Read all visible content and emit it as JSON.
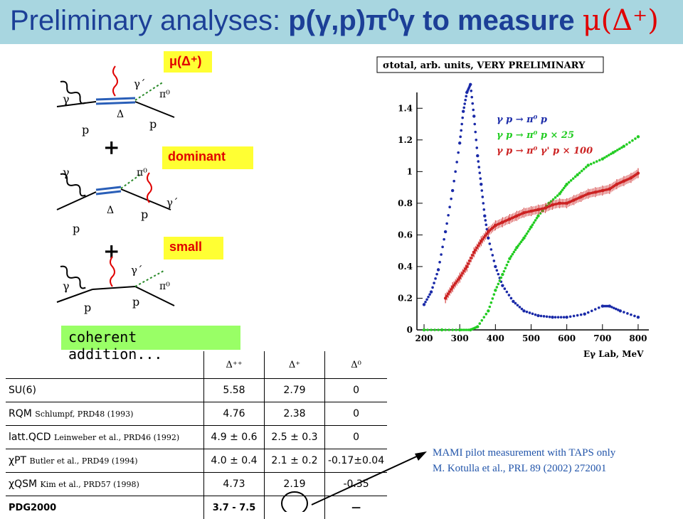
{
  "title": {
    "prefix": "Preliminary analyses: ",
    "reaction": "p(γ,p)π⁰γ",
    "mid": " to measure ",
    "quantity": "μ(Δ⁺)"
  },
  "diagrams": {
    "labels": {
      "gamma": "γ",
      "gamma_prime": "γ´",
      "pi0": "π⁰",
      "delta": "Δ",
      "p": "p",
      "plus": "+"
    },
    "box_mu": "μ(Δ⁺)",
    "box_dominant": "dominant",
    "box_small": "small",
    "coherent": "coherent addition..."
  },
  "chart_data": {
    "type": "scatter",
    "title": "σtotal, arb. units, VERY PRELIMINARY",
    "xlabel": "Eγ Lab, MeV",
    "ylabel": "",
    "xlim": [
      180,
      830
    ],
    "ylim": [
      0,
      1.5
    ],
    "xticks": [
      "200",
      "300",
      "400",
      "500",
      "600",
      "700",
      "800"
    ],
    "yticks": [
      "0",
      "0.2",
      "0.4",
      "0.6",
      "0.8",
      "1",
      "1.2",
      "1.4"
    ],
    "series": [
      {
        "name": "γ p → π⁰ p",
        "color": "#1a2aa8",
        "x": [
          200,
          220,
          240,
          260,
          280,
          300,
          310,
          320,
          330,
          340,
          350,
          360,
          370,
          380,
          400,
          420,
          450,
          480,
          520,
          560,
          600,
          650,
          700,
          720,
          750,
          800
        ],
        "y": [
          0.16,
          0.24,
          0.38,
          0.62,
          0.88,
          1.18,
          1.38,
          1.5,
          1.55,
          1.35,
          1.1,
          0.92,
          0.72,
          0.58,
          0.4,
          0.28,
          0.18,
          0.12,
          0.09,
          0.08,
          0.08,
          0.1,
          0.15,
          0.15,
          0.12,
          0.08
        ]
      },
      {
        "name": "γ p → π⁰ p × 25",
        "color": "#22cc22",
        "x": [
          200,
          250,
          300,
          330,
          350,
          380,
          400,
          420,
          440,
          460,
          480,
          500,
          520,
          550,
          580,
          600,
          630,
          660,
          700,
          730,
          760,
          800
        ],
        "y": [
          0,
          0,
          0,
          0,
          0.02,
          0.12,
          0.25,
          0.35,
          0.45,
          0.52,
          0.58,
          0.65,
          0.72,
          0.8,
          0.86,
          0.92,
          0.98,
          1.04,
          1.08,
          1.12,
          1.16,
          1.22
        ]
      },
      {
        "name": "γ p → π⁰ γ' p × 100",
        "color": "#cc2222",
        "x": [
          260,
          280,
          300,
          320,
          340,
          360,
          380,
          400,
          420,
          440,
          460,
          480,
          500,
          520,
          540,
          560,
          580,
          600,
          620,
          640,
          660,
          680,
          700,
          720,
          740,
          760,
          780,
          800
        ],
        "y": [
          0.2,
          0.27,
          0.33,
          0.4,
          0.49,
          0.56,
          0.62,
          0.66,
          0.68,
          0.7,
          0.72,
          0.74,
          0.75,
          0.76,
          0.77,
          0.79,
          0.8,
          0.8,
          0.82,
          0.84,
          0.86,
          0.87,
          0.88,
          0.89,
          0.92,
          0.94,
          0.96,
          0.99
        ]
      }
    ]
  },
  "table": {
    "headers": [
      "Δ⁺⁺",
      "Δ⁺",
      "Δ⁰"
    ],
    "rows": [
      {
        "name": "SU(6)",
        "ref": "",
        "v": [
          "5.58",
          "2.79",
          "0"
        ]
      },
      {
        "name": "RQM",
        "ref": "Schlumpf, PRD48 (1993)",
        "v": [
          "4.76",
          "2.38",
          "0"
        ]
      },
      {
        "name": "latt.QCD",
        "ref": "Leinweber et al., PRD46 (1992)",
        "v": [
          "4.9 ± 0.6",
          "2.5 ± 0.3",
          "0"
        ]
      },
      {
        "name": "χPT",
        "ref": "Butler et al., PRD49 (1994)",
        "v": [
          "4.0 ± 0.4",
          "2.1 ± 0.2",
          "-0.17±0.04"
        ]
      },
      {
        "name": "χQSM",
        "ref": "Kim et al., PRD57 (1998)",
        "v": [
          "4.73",
          "2.19",
          "-0.35"
        ]
      },
      {
        "name": "PDG2000",
        "ref": "",
        "v": [
          "3.7 - 7.5",
          "",
          "—"
        ]
      }
    ]
  },
  "note": {
    "line1": "MAMI pilot measurement with TAPS only",
    "line2": "M. Kotulla et al., PRL 89 (2002) 272001"
  }
}
